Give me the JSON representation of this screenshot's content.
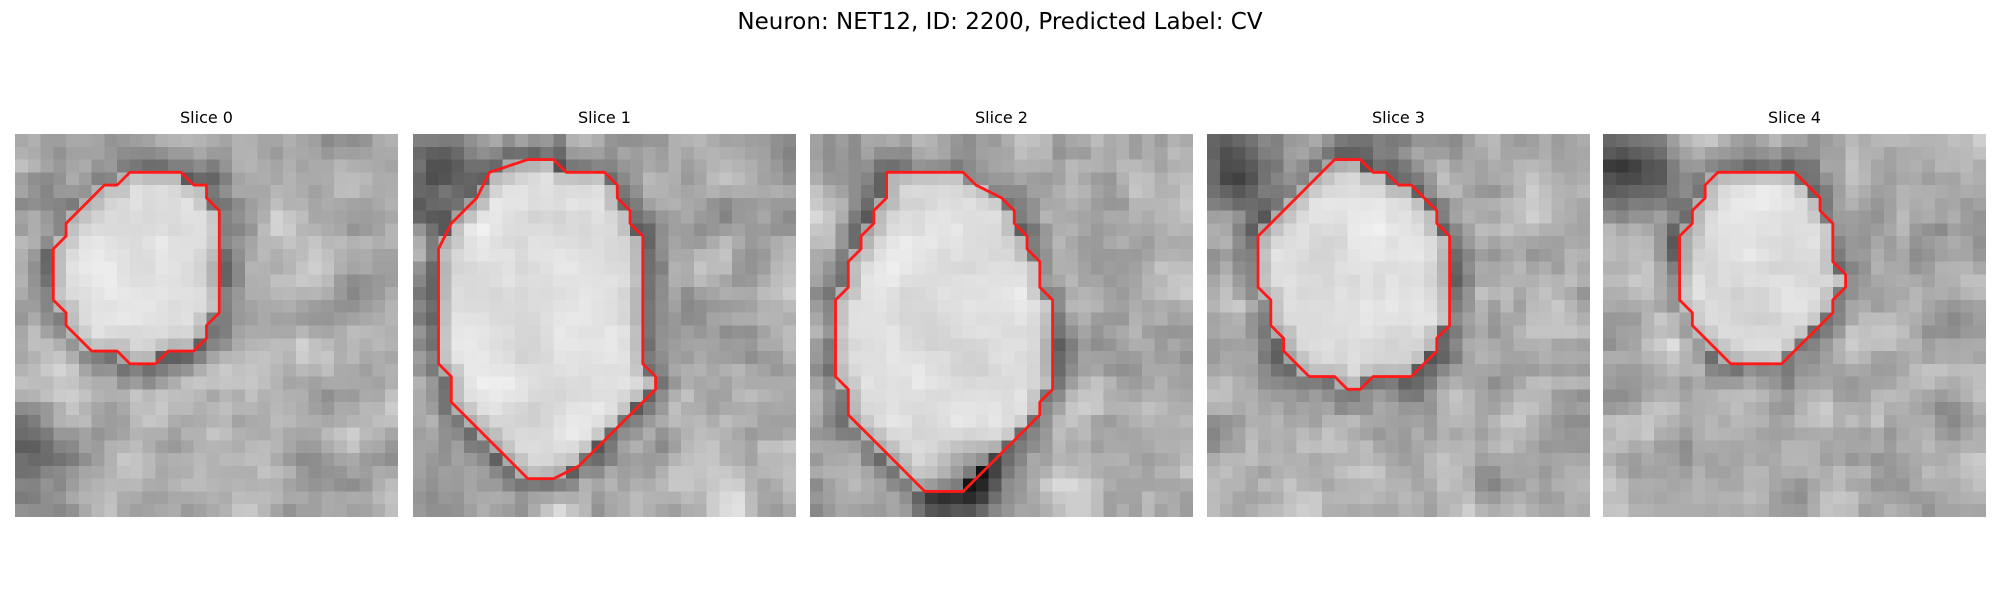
{
  "figure": {
    "title": "Neuron: NET12, ID: 2200, Predicted Label: CV"
  },
  "colors": {
    "contour": "#ff1a1a",
    "colormap": "grayscale"
  },
  "slices": [
    {
      "title": "Slice 0",
      "seed": 11,
      "dark_corner": "bottom-left",
      "contour": [
        [
          9,
          3
        ],
        [
          13,
          3
        ],
        [
          14,
          4
        ],
        [
          15,
          4
        ],
        [
          15,
          5
        ],
        [
          16,
          6
        ],
        [
          16,
          14
        ],
        [
          15,
          15
        ],
        [
          15,
          16
        ],
        [
          14,
          17
        ],
        [
          12,
          17
        ],
        [
          11,
          18
        ],
        [
          9,
          18
        ],
        [
          8,
          17
        ],
        [
          6,
          17
        ],
        [
          5,
          16
        ],
        [
          4,
          15
        ],
        [
          4,
          14
        ],
        [
          3,
          13
        ],
        [
          3,
          9
        ],
        [
          4,
          8
        ],
        [
          4,
          7
        ],
        [
          5,
          6
        ],
        [
          6,
          5
        ],
        [
          7,
          4
        ],
        [
          8,
          4
        ]
      ]
    },
    {
      "title": "Slice 1",
      "seed": 23,
      "dark_corner": "top-left",
      "contour": [
        [
          6,
          3
        ],
        [
          9,
          2
        ],
        [
          11,
          2
        ],
        [
          12,
          3
        ],
        [
          15,
          3
        ],
        [
          16,
          4
        ],
        [
          16,
          5
        ],
        [
          17,
          6
        ],
        [
          17,
          7
        ],
        [
          18,
          8
        ],
        [
          18,
          18
        ],
        [
          19,
          19
        ],
        [
          19,
          20
        ],
        [
          18,
          21
        ],
        [
          17,
          22
        ],
        [
          16,
          23
        ],
        [
          15,
          24
        ],
        [
          14,
          25
        ],
        [
          13,
          26
        ],
        [
          11,
          27
        ],
        [
          9,
          27
        ],
        [
          8,
          26
        ],
        [
          7,
          25
        ],
        [
          6,
          24
        ],
        [
          5,
          23
        ],
        [
          4,
          22
        ],
        [
          3,
          21
        ],
        [
          3,
          19
        ],
        [
          2,
          18
        ],
        [
          2,
          9
        ],
        [
          3,
          7
        ],
        [
          4,
          6
        ],
        [
          5,
          5
        ]
      ]
    },
    {
      "title": "Slice 2",
      "seed": 37,
      "dark_corner": "bottom-center",
      "contour": [
        [
          6,
          3
        ],
        [
          12,
          3
        ],
        [
          13,
          4
        ],
        [
          15,
          5
        ],
        [
          16,
          6
        ],
        [
          16,
          7
        ],
        [
          17,
          8
        ],
        [
          17,
          9
        ],
        [
          18,
          10
        ],
        [
          18,
          12
        ],
        [
          19,
          13
        ],
        [
          19,
          20
        ],
        [
          18,
          21
        ],
        [
          18,
          22
        ],
        [
          17,
          23
        ],
        [
          16,
          24
        ],
        [
          15,
          25
        ],
        [
          14,
          26
        ],
        [
          13,
          27
        ],
        [
          12,
          28
        ],
        [
          9,
          28
        ],
        [
          8,
          27
        ],
        [
          7,
          26
        ],
        [
          6,
          25
        ],
        [
          5,
          24
        ],
        [
          4,
          23
        ],
        [
          3,
          22
        ],
        [
          3,
          20
        ],
        [
          2,
          19
        ],
        [
          2,
          13
        ],
        [
          3,
          12
        ],
        [
          3,
          10
        ],
        [
          4,
          9
        ],
        [
          4,
          8
        ],
        [
          5,
          7
        ],
        [
          5,
          6
        ],
        [
          6,
          5
        ]
      ]
    },
    {
      "title": "Slice 3",
      "seed": 53,
      "dark_corner": "top-left",
      "contour": [
        [
          10,
          2
        ],
        [
          12,
          2
        ],
        [
          13,
          3
        ],
        [
          14,
          3
        ],
        [
          15,
          4
        ],
        [
          16,
          4
        ],
        [
          17,
          5
        ],
        [
          18,
          6
        ],
        [
          18,
          7
        ],
        [
          19,
          8
        ],
        [
          19,
          15
        ],
        [
          18,
          16
        ],
        [
          18,
          17
        ],
        [
          17,
          18
        ],
        [
          16,
          19
        ],
        [
          13,
          19
        ],
        [
          12,
          20
        ],
        [
          11,
          20
        ],
        [
          10,
          19
        ],
        [
          8,
          19
        ],
        [
          7,
          18
        ],
        [
          6,
          17
        ],
        [
          6,
          16
        ],
        [
          5,
          15
        ],
        [
          5,
          13
        ],
        [
          4,
          12
        ],
        [
          4,
          8
        ],
        [
          5,
          7
        ],
        [
          6,
          6
        ],
        [
          7,
          5
        ],
        [
          8,
          4
        ],
        [
          9,
          3
        ]
      ]
    },
    {
      "title": "Slice 4",
      "seed": 71,
      "dark_corner": "top-left",
      "contour": [
        [
          9,
          3
        ],
        [
          15,
          3
        ],
        [
          16,
          4
        ],
        [
          17,
          5
        ],
        [
          17,
          6
        ],
        [
          18,
          7
        ],
        [
          18,
          8
        ],
        [
          18,
          10
        ],
        [
          19,
          11
        ],
        [
          19,
          12
        ],
        [
          18,
          13
        ],
        [
          18,
          14
        ],
        [
          17,
          15
        ],
        [
          16,
          16
        ],
        [
          15,
          17
        ],
        [
          14,
          18
        ],
        [
          10,
          18
        ],
        [
          9,
          17
        ],
        [
          8,
          16
        ],
        [
          7,
          15
        ],
        [
          7,
          14
        ],
        [
          6,
          13
        ],
        [
          6,
          8
        ],
        [
          7,
          7
        ],
        [
          7,
          6
        ],
        [
          8,
          5
        ],
        [
          8,
          4
        ]
      ]
    }
  ]
}
